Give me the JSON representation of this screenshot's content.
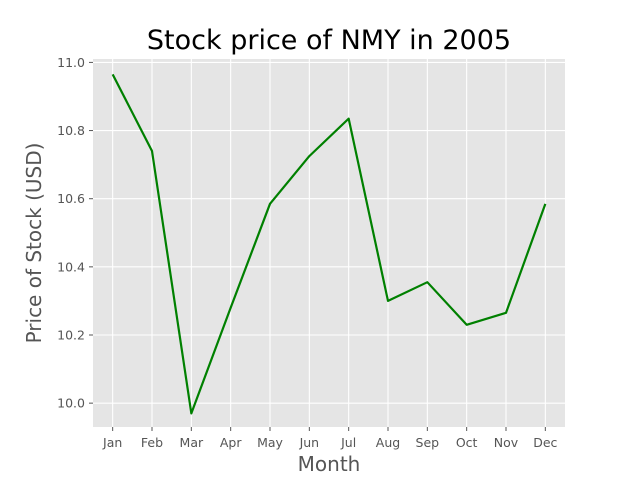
{
  "chart_data": {
    "type": "line",
    "title": "Stock price of NMY in 2005",
    "xlabel": "Month",
    "ylabel": "Price of Stock (USD)",
    "categories": [
      "Jan",
      "Feb",
      "Mar",
      "Apr",
      "May",
      "Jun",
      "Jul",
      "Aug",
      "Sep",
      "Oct",
      "Nov",
      "Dec"
    ],
    "series": [
      {
        "values": [
          10.965,
          10.74,
          9.97,
          10.28,
          10.585,
          10.725,
          10.835,
          10.3,
          10.355,
          10.23,
          10.265,
          10.585
        ],
        "color": "#008000"
      }
    ],
    "ylim": [
      9.93,
      11.01
    ],
    "yticks": [
      "10.0",
      "10.2",
      "10.4",
      "10.6",
      "10.8",
      "11.0"
    ],
    "grid": true,
    "legend": "none",
    "background": "#e5e5e5"
  }
}
